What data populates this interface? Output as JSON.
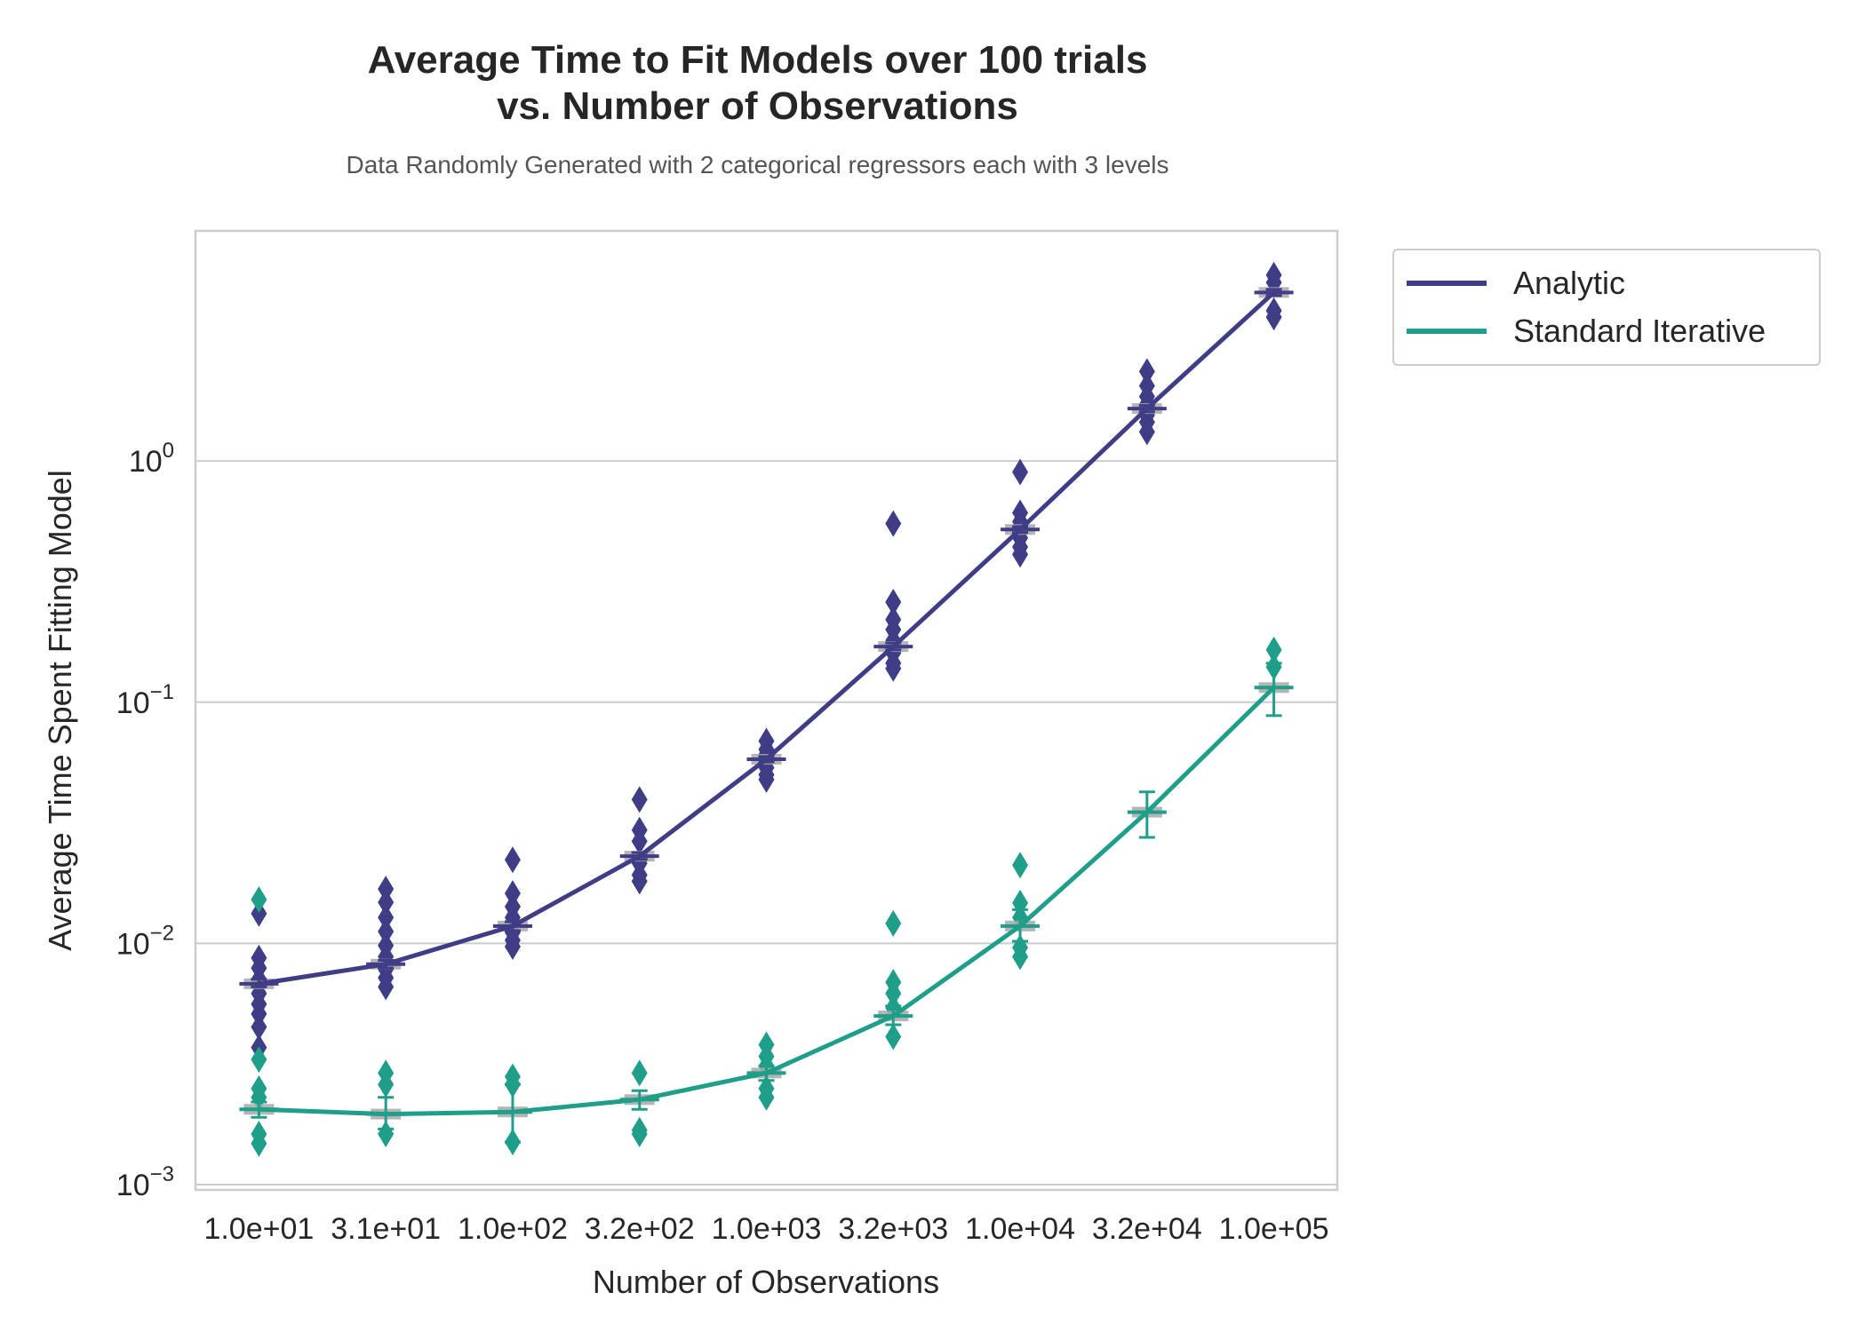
{
  "chart_data": {
    "type": "line",
    "title_lines": [
      "Average Time to Fit Models over 100 trials",
      "vs. Number of Observations"
    ],
    "subtitle": "Data Randomly Generated with 2 categorical regressors each with 3 levels",
    "xlabel": "Number of Observations",
    "ylabel": "Average Time Spent Fitting Model",
    "categories": [
      "1.0e+01",
      "3.1e+01",
      "1.0e+02",
      "3.2e+02",
      "1.0e+03",
      "3.2e+03",
      "1.0e+04",
      "3.2e+04",
      "1.0e+05"
    ],
    "y_scale": "log",
    "ylim": [
      0.00095,
      9.0
    ],
    "y_ticks": [
      {
        "value": 0.001,
        "base": "10",
        "exp": "−3"
      },
      {
        "value": 0.01,
        "base": "10",
        "exp": "−2"
      },
      {
        "value": 0.1,
        "base": "10",
        "exp": "−1"
      },
      {
        "value": 1,
        "base": "10",
        "exp": "0"
      }
    ],
    "grid": "horizontal",
    "legend_position": "outside-right",
    "series": [
      {
        "name": "Analytic",
        "color": "#3f3d85",
        "values": [
          0.0068,
          0.0082,
          0.0118,
          0.023,
          0.058,
          0.17,
          0.52,
          1.65,
          5.0
        ],
        "outliers": [
          [
            0.0133,
            0.0087,
            0.0079,
            0.0071,
            0.0062,
            0.0056,
            0.0051,
            0.0045,
            0.0037
          ],
          [
            0.0168,
            0.0148,
            0.0128,
            0.0112,
            0.0098,
            0.0088,
            0.0078,
            0.0072,
            0.0066
          ],
          [
            0.0222,
            0.0161,
            0.0142,
            0.0128,
            0.0111,
            0.0103,
            0.0097
          ],
          [
            0.0395,
            0.0295,
            0.0265,
            0.0215,
            0.0192,
            0.0181
          ],
          [
            0.069,
            0.0637,
            0.0608,
            0.0535,
            0.05,
            0.0478
          ],
          [
            0.55,
            0.26,
            0.22,
            0.2,
            0.18,
            0.16,
            0.145,
            0.138
          ],
          [
            0.9,
            0.61,
            0.56,
            0.48,
            0.44,
            0.41
          ],
          [
            2.35,
            2.05,
            1.85,
            1.72,
            1.55,
            1.45,
            1.32
          ],
          [
            5.9,
            5.5,
            4.2,
            3.95
          ]
        ],
        "errors": [
          [
            0.0066,
            0.0071
          ],
          [
            0.0079,
            0.0085
          ],
          [
            0.0113,
            0.0123
          ],
          [
            0.0223,
            0.0238
          ],
          [
            0.0565,
            0.0595
          ],
          [
            0.165,
            0.176
          ],
          [
            0.505,
            0.535
          ],
          [
            1.6,
            1.7
          ],
          [
            4.85,
            5.15
          ]
        ]
      },
      {
        "name": "Standard Iterative",
        "color": "#1f9e89",
        "values": [
          0.00205,
          0.00196,
          0.002,
          0.00225,
          0.0029,
          0.005,
          0.0118,
          0.035,
          0.115
        ],
        "outliers": [
          [
            0.0152,
            0.0033,
            0.0025,
            0.0023,
            0.00162,
            0.00148
          ],
          [
            0.0029,
            0.0026,
            0.00162
          ],
          [
            0.0028,
            0.0026,
            0.0015
          ],
          [
            0.0029,
            0.00168,
            0.00162
          ],
          [
            0.0038,
            0.0034,
            0.0031,
            0.0025,
            0.0023
          ],
          [
            0.0121,
            0.0069,
            0.0062,
            0.0054,
            0.0041
          ],
          [
            0.0211,
            0.0147,
            0.0128,
            0.0096,
            0.0088
          ],
          [],
          [
            0.165,
            0.14
          ]
        ],
        "errors": [
          [
            0.0019,
            0.0022
          ],
          [
            0.0017,
            0.0023
          ],
          [
            0.0015,
            0.0026
          ],
          [
            0.00205,
            0.00245
          ],
          [
            0.0027,
            0.0031
          ],
          [
            0.0046,
            0.0055
          ],
          [
            0.0102,
            0.0138
          ],
          [
            0.0275,
            0.0425
          ],
          [
            0.088,
            0.145
          ]
        ]
      }
    ]
  }
}
